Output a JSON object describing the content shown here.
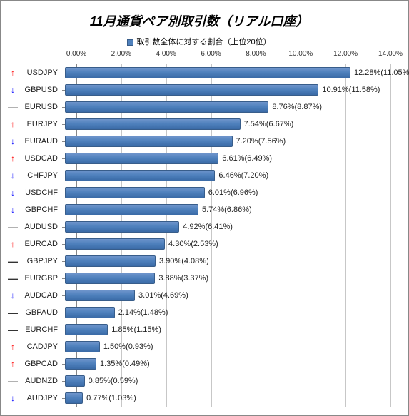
{
  "chart": {
    "title": "11月通貨ペア別取引数（リアル口座）",
    "legend_label": "取引数全体に対する割合（上位20位）",
    "bar_color_top": "#6f94cb",
    "bar_color_mid": "#4f81bd",
    "bar_color_bottom": "#3a6aa6",
    "bar_border": "#385d8a",
    "background_color": "#ffffff",
    "grid_color": "#c7c7c7",
    "axis_color": "#888888",
    "title_fontsize": 18,
    "label_fontsize": 11,
    "xmax": 14.0,
    "xtick_step": 2.0,
    "ticks": [
      "0.00%",
      "2.00%",
      "4.00%",
      "6.00%",
      "8.00%",
      "10.00%",
      "12.00%",
      "14.00%"
    ],
    "rows": [
      {
        "arrow": "up",
        "pair": "USDJPY",
        "value": 12.28,
        "prev": 11.05,
        "label": "12.28%(11.05%)"
      },
      {
        "arrow": "down",
        "pair": "GBPUSD",
        "value": 10.91,
        "prev": 11.58,
        "label": "10.91%(11.58%)"
      },
      {
        "arrow": "flat",
        "pair": "EURUSD",
        "value": 8.76,
        "prev": 8.87,
        "label": "8.76%(8.87%)"
      },
      {
        "arrow": "up",
        "pair": "EURJPY",
        "value": 7.54,
        "prev": 6.67,
        "label": "7.54%(6.67%)"
      },
      {
        "arrow": "down",
        "pair": "EURAUD",
        "value": 7.2,
        "prev": 7.56,
        "label": "7.20%(7.56%)"
      },
      {
        "arrow": "up",
        "pair": "USDCAD",
        "value": 6.61,
        "prev": 6.49,
        "label": "6.61%(6.49%)"
      },
      {
        "arrow": "down",
        "pair": "CHFJPY",
        "value": 6.46,
        "prev": 7.2,
        "label": "6.46%(7.20%)"
      },
      {
        "arrow": "down",
        "pair": "USDCHF",
        "value": 6.01,
        "prev": 6.96,
        "label": "6.01%(6.96%)"
      },
      {
        "arrow": "down",
        "pair": "GBPCHF",
        "value": 5.74,
        "prev": 6.86,
        "label": "5.74%(6.86%)"
      },
      {
        "arrow": "flat",
        "pair": "AUDUSD",
        "value": 4.92,
        "prev": 6.41,
        "label": "4.92%(6.41%)"
      },
      {
        "arrow": "up",
        "pair": "EURCAD",
        "value": 4.3,
        "prev": 2.53,
        "label": "4.30%(2.53%)"
      },
      {
        "arrow": "flat",
        "pair": "GBPJPY",
        "value": 3.9,
        "prev": 4.08,
        "label": "3.90%(4.08%)"
      },
      {
        "arrow": "flat",
        "pair": "EURGBP",
        "value": 3.88,
        "prev": 3.37,
        "label": "3.88%(3.37%)"
      },
      {
        "arrow": "down",
        "pair": "AUDCAD",
        "value": 3.01,
        "prev": 4.69,
        "label": "3.01%(4.69%)"
      },
      {
        "arrow": "flat",
        "pair": "GBPAUD",
        "value": 2.14,
        "prev": 1.48,
        "label": "2.14%(1.48%)"
      },
      {
        "arrow": "flat",
        "pair": "EURCHF",
        "value": 1.85,
        "prev": 1.15,
        "label": "1.85%(1.15%)"
      },
      {
        "arrow": "up",
        "pair": "CADJPY",
        "value": 1.5,
        "prev": 0.93,
        "label": "1.50%(0.93%)"
      },
      {
        "arrow": "up",
        "pair": "GBPCAD",
        "value": 1.35,
        "prev": 0.49,
        "label": "1.35%(0.49%)"
      },
      {
        "arrow": "flat",
        "pair": "AUDNZD",
        "value": 0.85,
        "prev": 0.59,
        "label": "0.85%(0.59%)"
      },
      {
        "arrow": "down",
        "pair": "AUDJPY",
        "value": 0.77,
        "prev": 1.03,
        "label": "0.77%(1.03%)"
      }
    ]
  }
}
